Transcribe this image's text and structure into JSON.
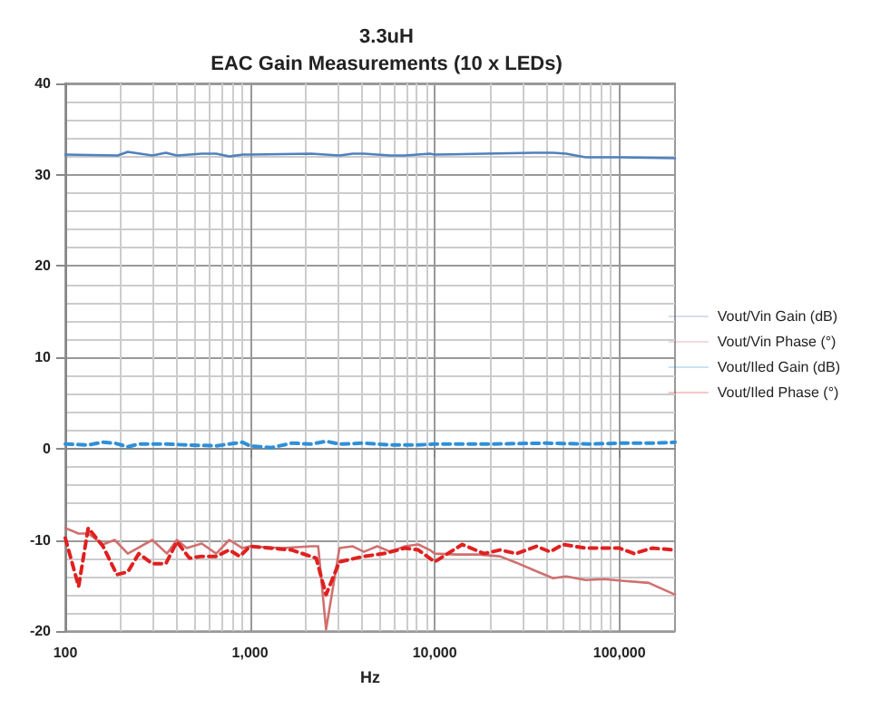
{
  "chart_data": {
    "type": "line",
    "title": "3.3uH",
    "subtitle": "EAC Gain Measurements (10 x LEDs)",
    "xlabel": "Hz",
    "log": "x",
    "xlim": [
      100,
      200000
    ],
    "xticks": [
      {
        "value": 100,
        "label": "100"
      },
      {
        "value": 1000,
        "label": "1,000"
      },
      {
        "value": 10000,
        "label": "10,000"
      },
      {
        "value": 100000,
        "label": "100,000"
      }
    ],
    "ylim": [
      -20,
      40
    ],
    "yticks": [
      -20,
      -10,
      0,
      10,
      20,
      30,
      40
    ],
    "grid": true,
    "legend": "right",
    "marker": "none",
    "series": [
      {
        "name": "Vout/Vin Gain (dB)",
        "color": "#4f81bd",
        "line_style": "solid",
        "x": [
          100,
          192,
          218,
          296,
          350,
          402,
          548,
          656,
          772,
          910,
          1000,
          2150,
          3050,
          3600,
          4140,
          5760,
          6900,
          9400,
          10000,
          34300,
          43700,
          51500,
          65700,
          82500,
          100000,
          200000
        ],
        "values": [
          32.2,
          32.1,
          32.5,
          32.1,
          32.4,
          32.1,
          32.3,
          32.3,
          32.0,
          32.2,
          32.2,
          32.3,
          32.1,
          32.3,
          32.3,
          32.1,
          32.1,
          32.3,
          32.2,
          32.4,
          32.4,
          32.3,
          31.9,
          31.9,
          31.9,
          31.8
        ]
      },
      {
        "name": "Vout/Vin Phase (°)",
        "color": "#d07070",
        "line_style": "solid",
        "x": [
          100,
          118,
          133,
          160,
          185,
          218,
          296,
          355,
          402,
          454,
          548,
          656,
          772,
          910,
          1000,
          1490,
          2150,
          2340,
          2580,
          3050,
          3600,
          4140,
          4880,
          5760,
          6900,
          8150,
          9400,
          10000,
          13000,
          17300,
          22600,
          27700,
          34300,
          43700,
          51500,
          65700,
          82500,
          106000,
          144000,
          200000
        ],
        "values": [
          -8.7,
          -9.3,
          -9.3,
          -10.5,
          -10,
          -11.5,
          -10,
          -11.5,
          -10,
          -10.9,
          -10.4,
          -11.5,
          -10,
          -10.9,
          -10.7,
          -10.9,
          -10.7,
          -10.7,
          -19.8,
          -10.9,
          -10.7,
          -11.3,
          -10.7,
          -11.3,
          -10.7,
          -10.5,
          -11.1,
          -11.5,
          -11.6,
          -11.6,
          -11.8,
          -12.5,
          -13.3,
          -14.2,
          -14,
          -14.4,
          -14.3,
          -14.5,
          -14.7,
          -16
        ]
      },
      {
        "name": "Vout/Iled Gain (dB)",
        "color": "#2f8fd8",
        "line_style": "dashed",
        "x": [
          100,
          133,
          160,
          185,
          218,
          250,
          350,
          454,
          656,
          910,
          1000,
          1300,
          1680,
          2150,
          2580,
          3050,
          4140,
          5760,
          8150,
          10000,
          20000,
          40000,
          70000,
          100000,
          150000,
          200000
        ],
        "values": [
          0.5,
          0.4,
          0.7,
          0.6,
          0.2,
          0.5,
          0.5,
          0.4,
          0.3,
          0.7,
          0.3,
          0.1,
          0.6,
          0.5,
          0.8,
          0.5,
          0.6,
          0.4,
          0.4,
          0.5,
          0.5,
          0.6,
          0.5,
          0.6,
          0.6,
          0.7
        ]
      },
      {
        "name": "Vout/Iled Phase (°)",
        "color": "#e02020",
        "line_style": "dashed",
        "x": [
          100,
          118,
          133,
          160,
          190,
          218,
          250,
          296,
          350,
          402,
          470,
          548,
          656,
          772,
          880,
          1000,
          1680,
          2280,
          2580,
          3050,
          4140,
          5300,
          6900,
          8150,
          10000,
          14100,
          18500,
          22600,
          27700,
          35600,
          42100,
          49600,
          65700,
          100000,
          120000,
          150000,
          200000
        ],
        "values": [
          -9.8,
          -15.1,
          -8.7,
          -10.7,
          -13.8,
          -13.5,
          -11.5,
          -12.6,
          -12.6,
          -10.2,
          -12,
          -11.8,
          -11.8,
          -11.1,
          -11.8,
          -10.7,
          -11.1,
          -12,
          -16,
          -12.4,
          -11.8,
          -11.5,
          -10.9,
          -11.1,
          -12.4,
          -10.5,
          -11.5,
          -11.1,
          -11.5,
          -10.7,
          -11.3,
          -10.5,
          -10.9,
          -10.9,
          -11.5,
          -10.9,
          -11.1
        ]
      }
    ]
  }
}
